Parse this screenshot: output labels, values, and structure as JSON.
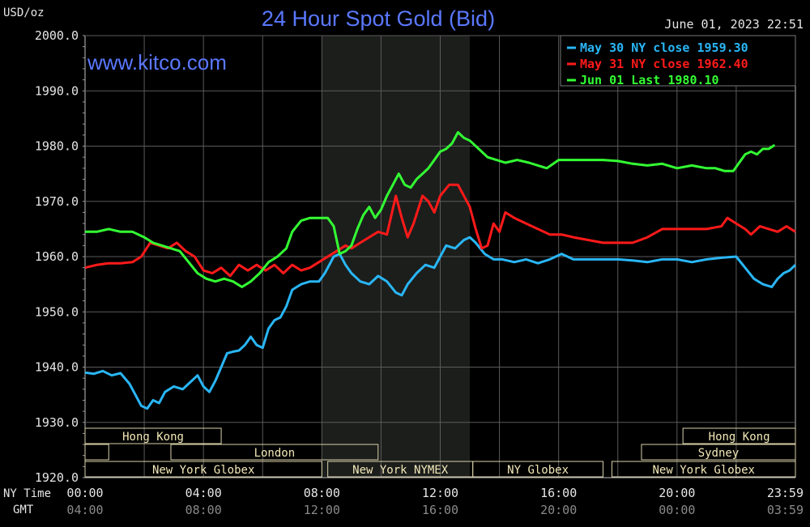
{
  "chart_data": {
    "type": "line",
    "title": "24 Hour Spot Gold (Bid)",
    "unit_label": "USD/oz",
    "watermark": "www.kitco.com",
    "timestamp": "June 01, 2023 22:51",
    "ylim": [
      1920,
      2000
    ],
    "y_ticks": [
      "2000.0",
      "1990.0",
      "1980.0",
      "1970.0",
      "1960.0",
      "1950.0",
      "1940.0",
      "1930.0",
      "1920.0"
    ],
    "x_row_labels": {
      "ny": "NY Time",
      "gmt": "GMT"
    },
    "x_ticks_ny": [
      "00:00",
      "04:00",
      "08:00",
      "12:00",
      "16:00",
      "20:00",
      "23:59"
    ],
    "x_ticks_gmt": [
      "04:00",
      "08:00",
      "12:00",
      "16:00",
      "20:00",
      "00:00",
      "03:59"
    ],
    "shaded_hours": [
      8,
      13
    ],
    "grid": true,
    "legend_position": "top-right",
    "series": [
      {
        "legend": "May 30 NY close 1959.30",
        "color": "#29b6f6",
        "points": [
          [
            0,
            1939
          ],
          [
            0.3,
            1938.8
          ],
          [
            0.6,
            1939.3
          ],
          [
            0.9,
            1938.5
          ],
          [
            1.2,
            1938.9
          ],
          [
            1.5,
            1937
          ],
          [
            1.7,
            1935
          ],
          [
            1.9,
            1933
          ],
          [
            2.1,
            1932.5
          ],
          [
            2.3,
            1934
          ],
          [
            2.5,
            1933.5
          ],
          [
            2.7,
            1935.5
          ],
          [
            3.0,
            1936.5
          ],
          [
            3.3,
            1936
          ],
          [
            3.6,
            1937.5
          ],
          [
            3.8,
            1938.5
          ],
          [
            4.0,
            1936.5
          ],
          [
            4.2,
            1935.5
          ],
          [
            4.4,
            1937.5
          ],
          [
            4.6,
            1940
          ],
          [
            4.8,
            1942.5
          ],
          [
            5.0,
            1942.8
          ],
          [
            5.2,
            1943
          ],
          [
            5.4,
            1944
          ],
          [
            5.6,
            1945.5
          ],
          [
            5.8,
            1944
          ],
          [
            6.0,
            1943.5
          ],
          [
            6.2,
            1947
          ],
          [
            6.4,
            1948.5
          ],
          [
            6.6,
            1949
          ],
          [
            6.8,
            1951
          ],
          [
            7.0,
            1954
          ],
          [
            7.3,
            1955
          ],
          [
            7.6,
            1955.5
          ],
          [
            7.9,
            1955.5
          ],
          [
            8.1,
            1957
          ],
          [
            8.4,
            1960
          ],
          [
            8.6,
            1960.5
          ],
          [
            8.8,
            1958.5
          ],
          [
            9.0,
            1957
          ],
          [
            9.3,
            1955.5
          ],
          [
            9.6,
            1955
          ],
          [
            9.9,
            1956.5
          ],
          [
            10.2,
            1955.5
          ],
          [
            10.5,
            1953.5
          ],
          [
            10.7,
            1953
          ],
          [
            10.9,
            1955
          ],
          [
            11.2,
            1957
          ],
          [
            11.5,
            1958.5
          ],
          [
            11.8,
            1958
          ],
          [
            12.0,
            1960
          ],
          [
            12.2,
            1962
          ],
          [
            12.5,
            1961.5
          ],
          [
            12.8,
            1963
          ],
          [
            13.0,
            1963.5
          ],
          [
            13.2,
            1962.5
          ],
          [
            13.5,
            1960.5
          ],
          [
            13.8,
            1959.5
          ],
          [
            14.1,
            1959.5
          ],
          [
            14.5,
            1959
          ],
          [
            14.9,
            1959.5
          ],
          [
            15.3,
            1958.8
          ],
          [
            15.7,
            1959.5
          ],
          [
            16.1,
            1960.5
          ],
          [
            16.5,
            1959.5
          ],
          [
            17.0,
            1959.5
          ],
          [
            17.5,
            1959.5
          ],
          [
            18.0,
            1959.5
          ],
          [
            18.5,
            1959.3
          ],
          [
            19.0,
            1959
          ],
          [
            19.5,
            1959.5
          ],
          [
            20.0,
            1959.5
          ],
          [
            20.5,
            1959
          ],
          [
            21.0,
            1959.5
          ],
          [
            21.5,
            1959.8
          ],
          [
            22.0,
            1960
          ],
          [
            22.3,
            1958
          ],
          [
            22.6,
            1956
          ],
          [
            22.9,
            1955
          ],
          [
            23.2,
            1954.5
          ],
          [
            23.4,
            1956
          ],
          [
            23.6,
            1957
          ],
          [
            23.8,
            1957.5
          ],
          [
            24.0,
            1958.5
          ]
        ]
      },
      {
        "legend": "May 31 NY close 1962.40",
        "color": "#ff1a1a",
        "points": [
          [
            0,
            1958
          ],
          [
            0.4,
            1958.5
          ],
          [
            0.8,
            1958.8
          ],
          [
            1.2,
            1958.8
          ],
          [
            1.6,
            1959
          ],
          [
            1.9,
            1960
          ],
          [
            2.2,
            1962.5
          ],
          [
            2.5,
            1962
          ],
          [
            2.8,
            1961.5
          ],
          [
            3.1,
            1962.5
          ],
          [
            3.4,
            1961
          ],
          [
            3.7,
            1960
          ],
          [
            4.0,
            1957.5
          ],
          [
            4.3,
            1957
          ],
          [
            4.6,
            1958
          ],
          [
            4.9,
            1956.5
          ],
          [
            5.2,
            1958.5
          ],
          [
            5.5,
            1957.5
          ],
          [
            5.8,
            1958.5
          ],
          [
            6.1,
            1957.5
          ],
          [
            6.4,
            1958.5
          ],
          [
            6.7,
            1957
          ],
          [
            7.0,
            1958.5
          ],
          [
            7.3,
            1957.5
          ],
          [
            7.6,
            1958
          ],
          [
            7.9,
            1959
          ],
          [
            8.2,
            1960
          ],
          [
            8.5,
            1961
          ],
          [
            8.8,
            1962
          ],
          [
            9.0,
            1961.5
          ],
          [
            9.3,
            1962.5
          ],
          [
            9.6,
            1963.5
          ],
          [
            9.9,
            1964.5
          ],
          [
            10.2,
            1964
          ],
          [
            10.5,
            1971
          ],
          [
            10.7,
            1967
          ],
          [
            10.9,
            1963.5
          ],
          [
            11.1,
            1966
          ],
          [
            11.4,
            1971
          ],
          [
            11.6,
            1970
          ],
          [
            11.8,
            1968
          ],
          [
            12.0,
            1971
          ],
          [
            12.3,
            1973
          ],
          [
            12.6,
            1973
          ],
          [
            12.8,
            1971
          ],
          [
            13.0,
            1969
          ],
          [
            13.2,
            1965
          ],
          [
            13.4,
            1961.5
          ],
          [
            13.6,
            1962
          ],
          [
            13.8,
            1966
          ],
          [
            14.0,
            1964.5
          ],
          [
            14.2,
            1968
          ],
          [
            14.5,
            1967
          ],
          [
            14.9,
            1966
          ],
          [
            15.3,
            1965
          ],
          [
            15.7,
            1964
          ],
          [
            16.1,
            1964
          ],
          [
            16.5,
            1963.5
          ],
          [
            17.0,
            1963
          ],
          [
            17.5,
            1962.5
          ],
          [
            18.0,
            1962.5
          ],
          [
            18.5,
            1962.5
          ],
          [
            19.0,
            1963.5
          ],
          [
            19.5,
            1965
          ],
          [
            20.0,
            1965
          ],
          [
            20.5,
            1965
          ],
          [
            21.0,
            1965
          ],
          [
            21.5,
            1965.5
          ],
          [
            21.7,
            1967
          ],
          [
            22.0,
            1966
          ],
          [
            22.3,
            1965
          ],
          [
            22.5,
            1964
          ],
          [
            22.8,
            1965.5
          ],
          [
            23.1,
            1965
          ],
          [
            23.4,
            1964.5
          ],
          [
            23.7,
            1965.5
          ],
          [
            24.0,
            1964.5
          ]
        ]
      },
      {
        "legend": "Jun 01 Last 1980.10",
        "color": "#33ff33",
        "points": [
          [
            0,
            1964.5
          ],
          [
            0.4,
            1964.5
          ],
          [
            0.8,
            1965
          ],
          [
            1.2,
            1964.5
          ],
          [
            1.6,
            1964.5
          ],
          [
            2.0,
            1963.5
          ],
          [
            2.3,
            1962.5
          ],
          [
            2.6,
            1962
          ],
          [
            2.9,
            1961.5
          ],
          [
            3.2,
            1961
          ],
          [
            3.5,
            1959
          ],
          [
            3.8,
            1957
          ],
          [
            4.1,
            1956
          ],
          [
            4.4,
            1955.5
          ],
          [
            4.7,
            1956
          ],
          [
            5.0,
            1955.5
          ],
          [
            5.3,
            1954.5
          ],
          [
            5.6,
            1955.5
          ],
          [
            5.9,
            1957
          ],
          [
            6.2,
            1959
          ],
          [
            6.5,
            1960
          ],
          [
            6.8,
            1961.5
          ],
          [
            7.0,
            1964.5
          ],
          [
            7.3,
            1966.5
          ],
          [
            7.6,
            1967
          ],
          [
            7.9,
            1967
          ],
          [
            8.2,
            1967
          ],
          [
            8.4,
            1965.5
          ],
          [
            8.6,
            1960.5
          ],
          [
            8.8,
            1961
          ],
          [
            9.0,
            1962
          ],
          [
            9.2,
            1965
          ],
          [
            9.4,
            1967.5
          ],
          [
            9.6,
            1969
          ],
          [
            9.8,
            1967
          ],
          [
            10.0,
            1968.5
          ],
          [
            10.2,
            1971
          ],
          [
            10.4,
            1973
          ],
          [
            10.6,
            1975
          ],
          [
            10.8,
            1973
          ],
          [
            11.0,
            1972.5
          ],
          [
            11.2,
            1974
          ],
          [
            11.4,
            1975
          ],
          [
            11.6,
            1976
          ],
          [
            11.8,
            1977.5
          ],
          [
            12.0,
            1979
          ],
          [
            12.2,
            1979.5
          ],
          [
            12.4,
            1980.5
          ],
          [
            12.6,
            1982.5
          ],
          [
            12.8,
            1981.5
          ],
          [
            13.0,
            1981
          ],
          [
            13.3,
            1979.5
          ],
          [
            13.6,
            1978
          ],
          [
            13.9,
            1977.5
          ],
          [
            14.2,
            1977
          ],
          [
            14.6,
            1977.5
          ],
          [
            15.0,
            1977
          ],
          [
            15.3,
            1976.5
          ],
          [
            15.6,
            1976
          ],
          [
            16.0,
            1977.5
          ],
          [
            16.5,
            1977.5
          ],
          [
            17.0,
            1977.5
          ],
          [
            17.5,
            1977.5
          ],
          [
            18.0,
            1977.3
          ],
          [
            18.5,
            1976.8
          ],
          [
            19.0,
            1976.5
          ],
          [
            19.5,
            1976.8
          ],
          [
            20.0,
            1976
          ],
          [
            20.5,
            1976.5
          ],
          [
            21.0,
            1976
          ],
          [
            21.3,
            1976
          ],
          [
            21.6,
            1975.5
          ],
          [
            21.9,
            1975.5
          ],
          [
            22.1,
            1977
          ],
          [
            22.3,
            1978.5
          ],
          [
            22.5,
            1979
          ],
          [
            22.7,
            1978.5
          ],
          [
            22.9,
            1979.5
          ],
          [
            23.1,
            1979.5
          ],
          [
            23.3,
            1980.2
          ]
        ]
      }
    ],
    "sessions": [
      {
        "label": "Hong Kong",
        "start": 0,
        "end": 4.6,
        "row": 0
      },
      {
        "label": "",
        "start": 0,
        "end": 0.8,
        "row": 1
      },
      {
        "label": "London",
        "start": 2.9,
        "end": 9.9,
        "row": 1
      },
      {
        "label": "New York Globex",
        "start": 0,
        "end": 8.0,
        "row": 2
      },
      {
        "label": "New York NYMEX",
        "start": 8.2,
        "end": 13.1,
        "row": 2
      },
      {
        "label": "NY Globex",
        "start": 13.1,
        "end": 17.5,
        "row": 2
      },
      {
        "label": "Hong Kong",
        "start": 20.2,
        "end": 24,
        "row": 0
      },
      {
        "label": "Sydney",
        "start": 18.8,
        "end": 24,
        "row": 1
      },
      {
        "label": "New York Globex",
        "start": 17.8,
        "end": 24,
        "row": 2
      }
    ]
  }
}
